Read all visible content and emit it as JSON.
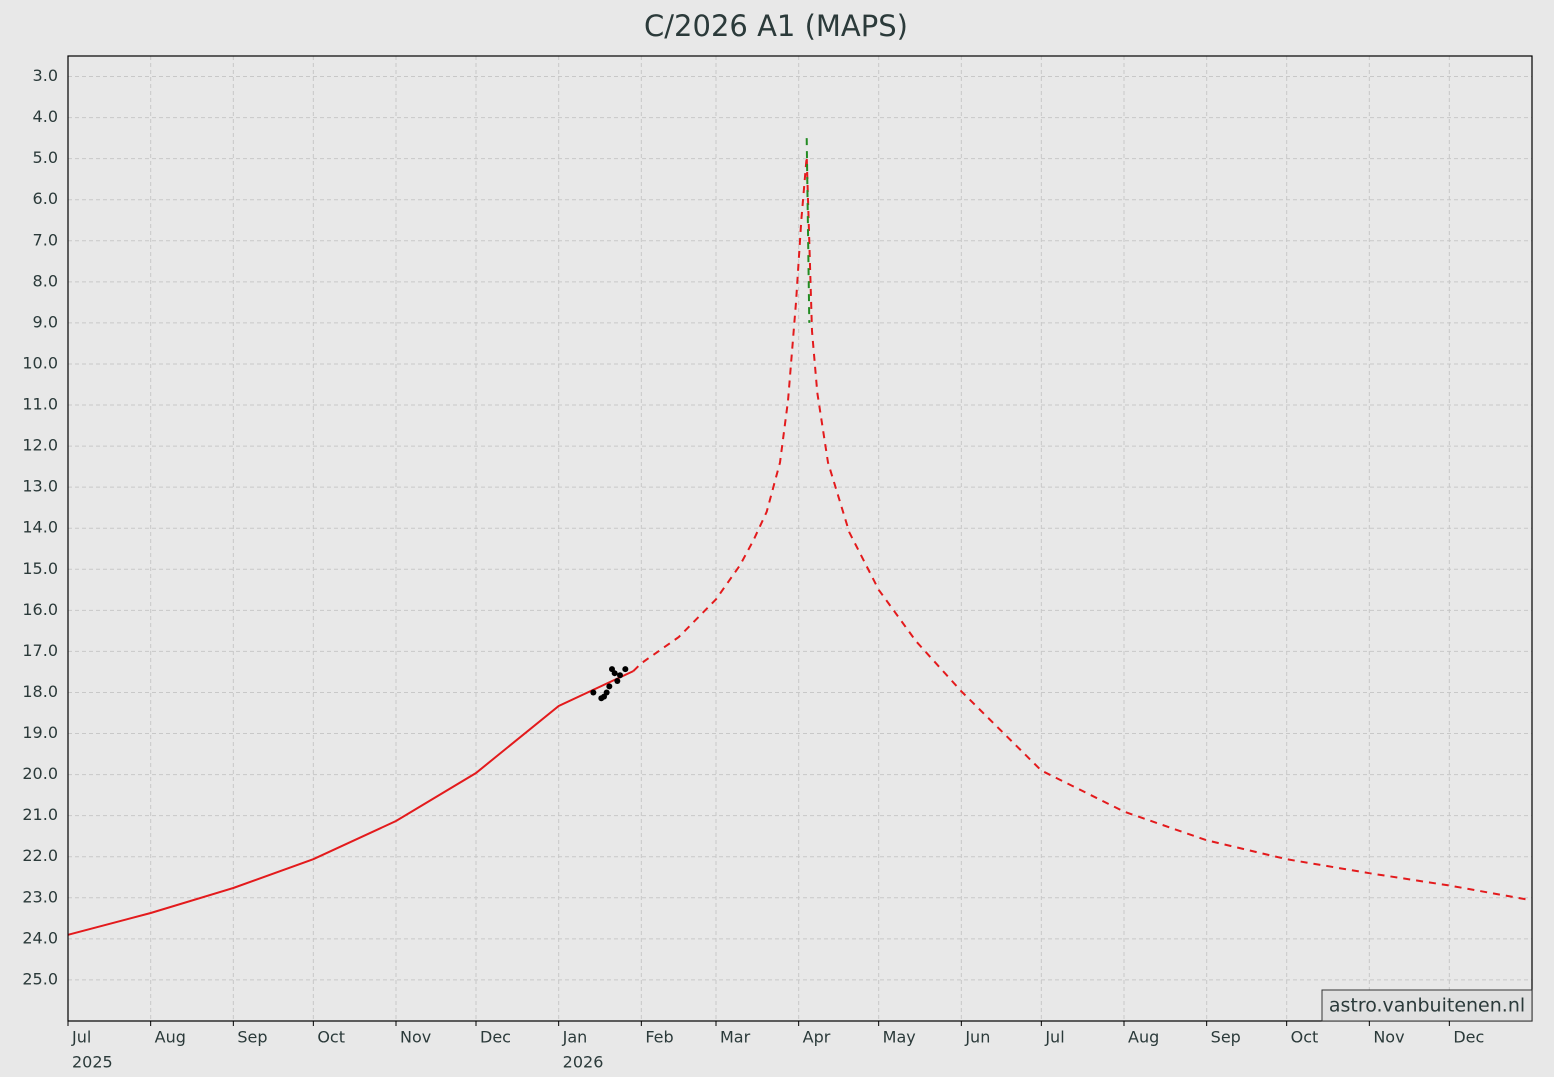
{
  "chart_data": {
    "type": "line",
    "title": "C/2026 A1 (MAPS)",
    "watermark": "astro.vanbuitenen.nl",
    "xlim": [
      "2025-07-01",
      "2027-01-01"
    ],
    "xticks": [
      {
        "value": "2025-07-01",
        "label": "Jul"
      },
      {
        "value": "2025-08-01",
        "label": "Aug"
      },
      {
        "value": "2025-09-01",
        "label": "Sep"
      },
      {
        "value": "2025-10-01",
        "label": "Oct"
      },
      {
        "value": "2025-11-01",
        "label": "Nov"
      },
      {
        "value": "2025-12-01",
        "label": "Dec"
      },
      {
        "value": "2026-01-01",
        "label": "Jan"
      },
      {
        "value": "2026-02-01",
        "label": "Feb"
      },
      {
        "value": "2026-03-01",
        "label": "Mar"
      },
      {
        "value": "2026-04-01",
        "label": "Apr"
      },
      {
        "value": "2026-05-01",
        "label": "May"
      },
      {
        "value": "2026-06-01",
        "label": "Jun"
      },
      {
        "value": "2026-07-01",
        "label": "Jul"
      },
      {
        "value": "2026-08-01",
        "label": "Aug"
      },
      {
        "value": "2026-09-01",
        "label": "Sep"
      },
      {
        "value": "2026-10-01",
        "label": "Oct"
      },
      {
        "value": "2026-11-01",
        "label": "Nov"
      },
      {
        "value": "2026-12-01",
        "label": "Dec"
      }
    ],
    "x_year_labels": [
      {
        "value": "2025-07-01",
        "label": "2025"
      },
      {
        "value": "2026-01-01",
        "label": "2026"
      }
    ],
    "ylim": [
      26.0,
      2.5
    ],
    "yticks": [
      {
        "value": 3,
        "label": "3.0"
      },
      {
        "value": 4,
        "label": "4.0"
      },
      {
        "value": 5,
        "label": "5.0"
      },
      {
        "value": 6,
        "label": "6.0"
      },
      {
        "value": 7,
        "label": "7.0"
      },
      {
        "value": 8,
        "label": "8.0"
      },
      {
        "value": 9,
        "label": "9.0"
      },
      {
        "value": 10,
        "label": "10.0"
      },
      {
        "value": 11,
        "label": "11.0"
      },
      {
        "value": 12,
        "label": "12.0"
      },
      {
        "value": 13,
        "label": "13.0"
      },
      {
        "value": 14,
        "label": "14.0"
      },
      {
        "value": 15,
        "label": "15.0"
      },
      {
        "value": 16,
        "label": "16.0"
      },
      {
        "value": 17,
        "label": "17.0"
      },
      {
        "value": 18,
        "label": "18.0"
      },
      {
        "value": 19,
        "label": "19.0"
      },
      {
        "value": 20,
        "label": "20.0"
      },
      {
        "value": 21,
        "label": "21.0"
      },
      {
        "value": 22,
        "label": "22.0"
      },
      {
        "value": 23,
        "label": "23.0"
      },
      {
        "value": 24,
        "label": "24.0"
      },
      {
        "value": 25,
        "label": "25.0"
      }
    ],
    "grid": true,
    "series": [
      {
        "color": "#e31a1c",
        "style": "solid",
        "x": [
          "2025-07-01",
          "2025-08-01",
          "2025-09-01",
          "2025-10-01",
          "2025-11-01",
          "2025-12-01",
          "2026-01-01",
          "2026-01-29"
        ],
        "values": [
          23.9,
          23.37,
          22.76,
          22.06,
          21.13,
          19.96,
          18.33,
          17.48
        ]
      },
      {
        "color": "#e31a1c",
        "style": "dashed",
        "x": [
          "2026-01-29",
          "2026-02-01",
          "2026-02-15",
          "2026-03-01",
          "2026-03-10",
          "2026-03-15",
          "2026-03-20",
          "2026-03-25",
          "2026-03-28",
          "2026-03-31",
          "2026-04-02",
          "2026-04-04",
          "2026-04-06",
          "2026-04-08",
          "2026-04-12",
          "2026-04-20",
          "2026-05-01",
          "2026-05-15",
          "2026-06-01",
          "2026-07-01",
          "2026-08-01",
          "2026-09-01",
          "2026-10-01",
          "2026-11-01",
          "2026-12-01",
          "2026-12-31"
        ],
        "values": [
          17.48,
          17.29,
          16.65,
          15.73,
          14.9,
          14.3,
          13.6,
          12.4,
          10.9,
          8.5,
          6.5,
          4.95,
          9.2,
          10.7,
          12.4,
          14.1,
          15.5,
          16.75,
          17.97,
          19.9,
          20.9,
          21.6,
          22.06,
          22.4,
          22.7,
          23.05
        ]
      },
      {
        "color": "#228b22",
        "style": "dashed",
        "x": [
          "2026-04-04",
          "2026-04-05"
        ],
        "values": [
          4.5,
          9.0
        ]
      },
      {
        "color": "#000000",
        "style": "markers",
        "x": [
          "2026-01-14",
          "2026-01-17",
          "2026-01-18",
          "2026-01-19",
          "2026-01-20",
          "2026-01-21",
          "2026-01-22",
          "2026-01-23",
          "2026-01-24",
          "2026-01-26"
        ],
        "values": [
          18.0,
          18.14,
          18.1,
          18.0,
          17.85,
          17.43,
          17.53,
          17.72,
          17.58,
          17.43
        ]
      }
    ]
  }
}
